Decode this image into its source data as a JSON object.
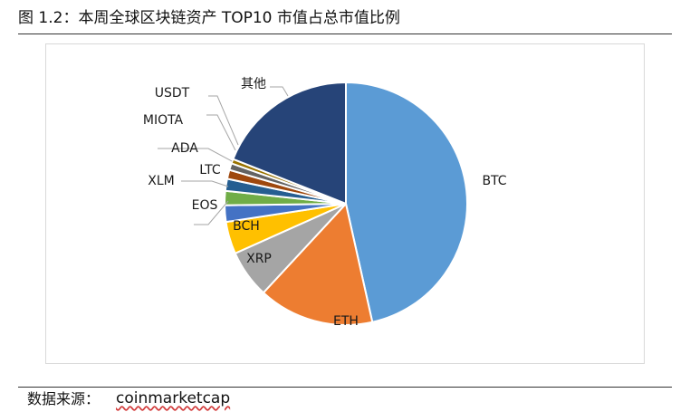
{
  "figure": {
    "title": "图 1.2：本周全球区块链资产 TOP10 市值占总市值比例",
    "source_label": "数据来源：",
    "source_value": "coinmarketcap"
  },
  "chart_data": {
    "type": "pie",
    "title": "",
    "slices": [
      {
        "label": "BTC",
        "value": 46.5,
        "color": "#5b9bd5"
      },
      {
        "label": "ETH",
        "value": 15.4,
        "color": "#ed7d31"
      },
      {
        "label": "XRP",
        "value": 6.4,
        "color": "#a5a5a5"
      },
      {
        "label": "BCH",
        "value": 4.3,
        "color": "#ffc000"
      },
      {
        "label": "EOS",
        "value": 2.2,
        "color": "#4472c4"
      },
      {
        "label": "XLM",
        "value": 1.9,
        "color": "#70ad47"
      },
      {
        "label": "LTC",
        "value": 1.6,
        "color": "#255e91"
      },
      {
        "label": "ADA",
        "value": 1.2,
        "color": "#9e480e"
      },
      {
        "label": "MIOTA",
        "value": 0.9,
        "color": "#636363"
      },
      {
        "label": "USDT",
        "value": 0.6,
        "color": "#997300"
      },
      {
        "label": "其他",
        "value": 19.0,
        "color": "#264478"
      }
    ],
    "start": "12 o'clock",
    "direction": "clockwise",
    "legend": "none",
    "data_labels": "category names"
  }
}
